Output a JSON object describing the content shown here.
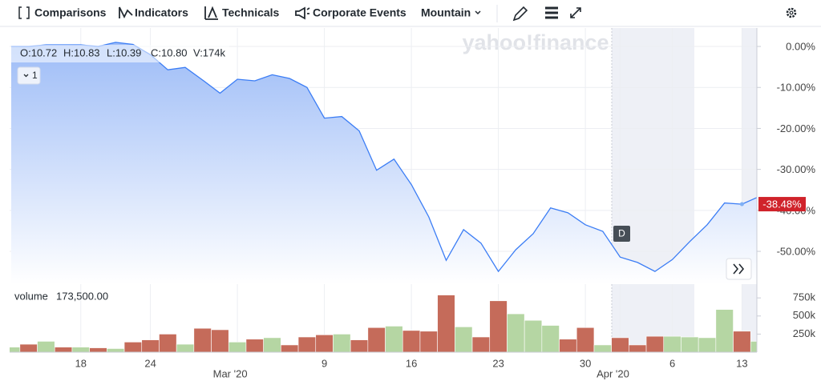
{
  "toolbar": {
    "items": [
      "Comparisons",
      "Indicators",
      "Technicals",
      "Corporate Events",
      "Mountain"
    ]
  },
  "legend": {
    "ohlc": [
      "O:10.72",
      "H:10.83",
      "L:10.39",
      "C:10.80",
      "V:174k"
    ],
    "series_badge": "1"
  },
  "watermark": "yahoo!finance",
  "event_marker": "D",
  "chart_data": [
    {
      "type": "area",
      "color": "#3b7df5",
      "categories": [
        null,
        null,
        null,
        null,
        "18",
        null,
        null,
        null,
        "24",
        null,
        null,
        null,
        null,
        "Mar '20",
        null,
        null,
        null,
        null,
        "9",
        null,
        null,
        null,
        null,
        "16",
        null,
        null,
        null,
        null,
        "23",
        null,
        null,
        null,
        null,
        "30",
        null,
        "Apr '20",
        null,
        null,
        "6",
        null,
        null,
        null,
        "13",
        null
      ],
      "values": [
        0.0,
        0.0,
        0.4,
        0.4,
        0.4,
        0.0,
        1.0,
        0.5,
        -2.0,
        -5.7,
        -5.1,
        -8.2,
        -11.4,
        -8.0,
        -8.4,
        -6.9,
        -7.8,
        -10.0,
        -17.5,
        -17.1,
        -20.6,
        -30.2,
        -27.5,
        -33.7,
        -41.6,
        -52.2,
        -44.7,
        -48.0,
        -54.9,
        -49.6,
        -45.7,
        -39.4,
        -40.6,
        -43.5,
        -45.1,
        -51.4,
        -52.7,
        -54.9,
        -52.0,
        -47.6,
        -43.5,
        -38.2,
        -38.48,
        -36.6
      ],
      "value_labels": [
        null,
        null,
        null,
        null,
        null,
        null,
        null,
        null,
        null,
        null,
        null,
        null,
        null,
        null,
        null,
        null,
        null,
        null,
        null,
        null,
        null,
        null,
        null,
        null,
        null,
        null,
        null,
        null,
        null,
        null,
        null,
        null,
        null,
        null,
        null,
        null,
        null,
        null,
        null,
        null,
        null,
        null,
        "-38.48%",
        null
      ],
      "ylim": [
        -58,
        4.5
      ],
      "yticks": [
        {
          "value": 0,
          "label": "0.00%"
        },
        {
          "value": -10,
          "label": "-10.00%"
        },
        {
          "value": -20,
          "label": "-20.00%"
        },
        {
          "value": -30,
          "label": "-30.00%"
        },
        {
          "value": -40,
          "label": "-40.00%"
        },
        {
          "value": -50,
          "label": "-50.00%"
        }
      ],
      "grid": true
    },
    {
      "type": "bar",
      "title": "volume",
      "subtitle": "173,500.00",
      "values": [
        70000,
        110000,
        150000,
        70000,
        70000,
        60000,
        50000,
        140000,
        170000,
        250000,
        110000,
        330000,
        310000,
        140000,
        180000,
        200000,
        100000,
        210000,
        240000,
        250000,
        170000,
        340000,
        360000,
        300000,
        290000,
        790000,
        350000,
        210000,
        710000,
        530000,
        440000,
        370000,
        180000,
        340000,
        100000,
        200000,
        100000,
        220000,
        220000,
        210000,
        200000,
        590000,
        290000,
        150000
      ],
      "colors": [
        "#b5d6a3",
        "#c56b5a",
        "#b5d6a3",
        "#c56b5a",
        "#b5d6a3",
        "#c56b5a",
        "#b5d6a3",
        "#c56b5a",
        "#c56b5a",
        "#c56b5a",
        "#b5d6a3",
        "#c56b5a",
        "#c56b5a",
        "#b5d6a3",
        "#c56b5a",
        "#b5d6a3",
        "#c56b5a",
        "#c56b5a",
        "#c56b5a",
        "#b5d6a3",
        "#c56b5a",
        "#c56b5a",
        "#b5d6a3",
        "#c56b5a",
        "#c56b5a",
        "#c56b5a",
        "#b5d6a3",
        "#c56b5a",
        "#c56b5a",
        "#b5d6a3",
        "#b5d6a3",
        "#b5d6a3",
        "#c56b5a",
        "#c56b5a",
        "#b5d6a3",
        "#c56b5a",
        "#c56b5a",
        "#c56b5a",
        "#b5d6a3",
        "#b5d6a3",
        "#b5d6a3",
        "#b5d6a3",
        "#c56b5a",
        "#b5d6a3"
      ],
      "ylim": [
        0,
        940000
      ],
      "yticks": [
        {
          "value": 250000,
          "label": "250k"
        },
        {
          "value": 500000,
          "label": "500k"
        },
        {
          "value": 750000,
          "label": "750k"
        }
      ]
    }
  ]
}
